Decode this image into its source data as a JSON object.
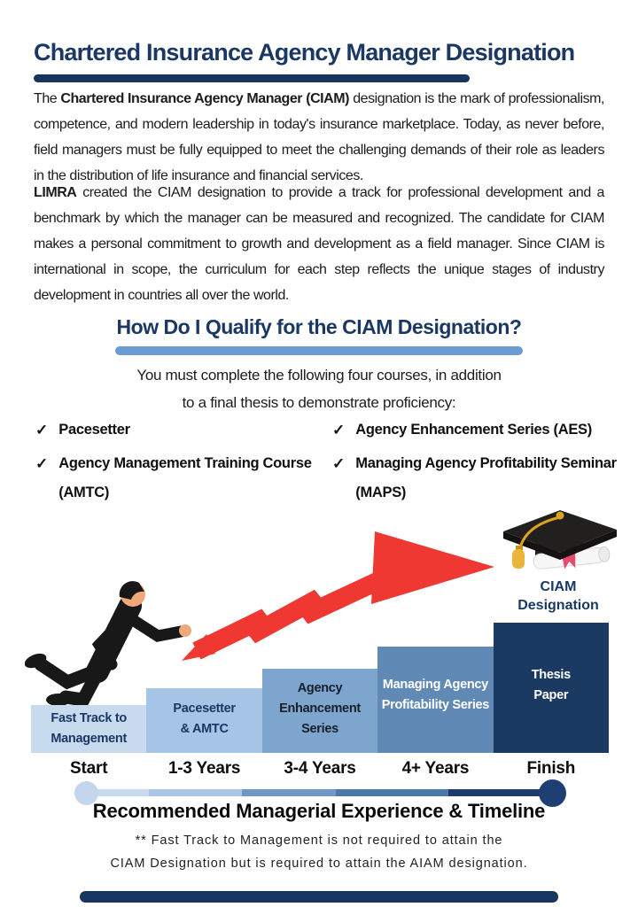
{
  "header": {
    "title": "Chartered Insurance Agency Manager Designation"
  },
  "paragraphs": [
    {
      "segments": [
        {
          "text": "The ",
          "bold": false
        },
        {
          "text": "Chartered Insurance Agency Manager (CIAM)",
          "bold": true
        },
        {
          "text": " designation is the mark of professionalism, competence, and modern leadership in today's insurance marketplace. Today, as never before, field managers must be fully equipped to meet the challenging demands of their role as leaders in the distribution of life insurance and financial services.",
          "bold": false
        }
      ]
    },
    {
      "segments": [
        {
          "text": "LIMRA",
          "bold": true
        },
        {
          "text": " created the CIAM designation to provide a track for professional development and a benchmark by which the manager can be measured and recognized. The candidate for CIAM makes a personal commitment to growth and development as a field manager. Since CIAM is international in scope, the curriculum for each step reflects the unique stages of industry development in countries all over the world.",
          "bold": false
        }
      ]
    }
  ],
  "qualify": {
    "heading": "How Do I Qualify for the CIAM Designation?",
    "intro_line1": "You must complete the following four courses, in addition",
    "intro_line2": "to a final thesis to demonstrate proficiency:",
    "checkmark": "✓",
    "courses": [
      {
        "lines": [
          "Pacesetter"
        ]
      },
      {
        "lines": [
          "Agency Management Training Course",
          "(AMTC)"
        ]
      },
      {
        "lines": [
          "Agency Enhancement Series (AES)"
        ]
      },
      {
        "lines": [
          "Managing Agency Profitability Seminar",
          "(MAPS)"
        ]
      }
    ]
  },
  "diagram": {
    "achievement_label_lines": [
      "CIAM",
      "Designation"
    ],
    "steps": [
      {
        "label_lines": [
          "Fast Track to",
          "Management"
        ],
        "timeline_label": "Start",
        "color": "#c8daee",
        "text_color": "#1a3863"
      },
      {
        "label_lines": [
          "Pacesetter",
          "& AMTC"
        ],
        "timeline_label": "1-3 Years",
        "color": "#a6c4e5",
        "text_color": "#1a3863"
      },
      {
        "label_lines": [
          "Agency",
          "Enhancement",
          "Series"
        ],
        "timeline_label": "3-4 Years",
        "color": "#7ea5ce",
        "text_color": "#16202c"
      },
      {
        "label_lines": [
          "Managing Agency",
          "Profitability Series"
        ],
        "timeline_label": "4+ Years",
        "color": "#6189b6",
        "text_color": "#ffffff"
      },
      {
        "label_lines": [
          "Thesis",
          "Paper"
        ],
        "timeline_label": "Finish",
        "color": "#1b3a61",
        "text_color": "#ffffff"
      }
    ],
    "timeline_title": "Recommended Managerial Experience & Timeline",
    "footnote_lines": [
      "** Fast Track to Management is not required to attain the",
      "CIAM Designation but is required to attain the AIAM designation."
    ]
  },
  "colors": {
    "navy": "#17355e",
    "heading_underline": "#6b9bd3",
    "arrow_red": "#ee3831",
    "timeline_start_dot": "#c3d6ec",
    "timeline_end_dot": "#1e3f74",
    "tassel_gold": "#e9b63b",
    "diploma_ribbon": "#e84a6f"
  }
}
